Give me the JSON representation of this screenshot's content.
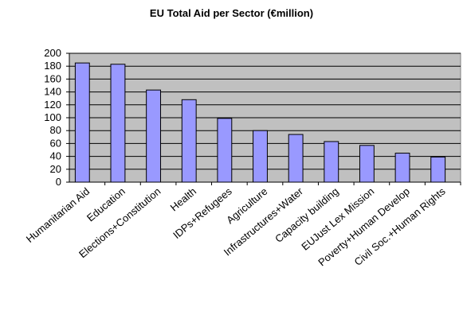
{
  "chart_data": {
    "type": "bar",
    "title": "EU Total Aid per Sector (€million)",
    "xlabel": "",
    "ylabel": "",
    "ylim": [
      0,
      200
    ],
    "ytick_step": 20,
    "grid": true,
    "legend": "none",
    "categories": [
      "Humanitarian Aid",
      "Education",
      "Elections+Constitution",
      "Health",
      "IDPs+Refugees",
      "Agriculture",
      "Infrastructures+Water",
      "Capacity building",
      "EUJust Lex Mission",
      "Poverty+Human Develop",
      "Civil Soc.+Human Rights"
    ],
    "values": [
      185,
      183,
      143,
      128,
      99,
      80,
      74,
      63,
      57,
      45,
      39
    ],
    "colors": {
      "bar_fill": "#9999ff",
      "bar_stroke": "#000000",
      "plot_bg": "#c0c0c0",
      "grid": "#000000"
    }
  }
}
